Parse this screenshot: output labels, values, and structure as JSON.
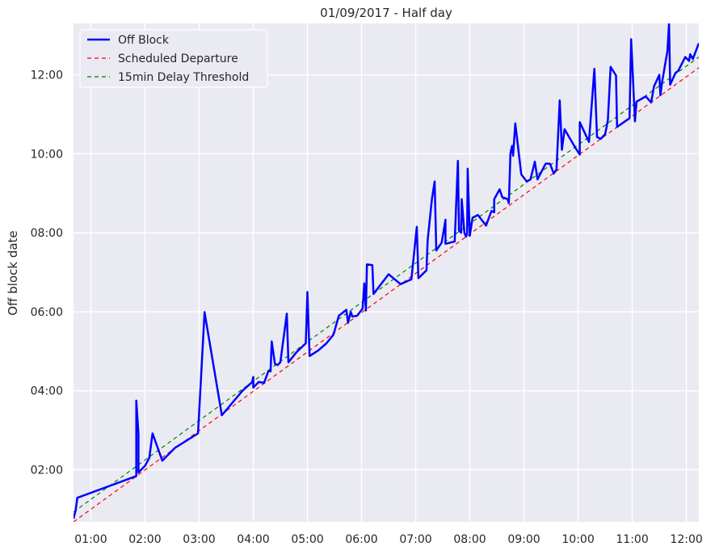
{
  "chart_data": {
    "type": "line",
    "title": "01/09/2017 - Half day",
    "xlabel": "",
    "ylabel": "Off block date",
    "x_unit": "hours (time of day)",
    "y_unit": "hours (time of day)",
    "xlim": [
      0.68,
      12.23
    ],
    "ylim": [
      0.68,
      13.3
    ],
    "grid": true,
    "legend_position": "top-left",
    "x_ticks": [
      {
        "v": 1,
        "label": "01:00"
      },
      {
        "v": 2,
        "label": "02:00"
      },
      {
        "v": 3,
        "label": "03:00"
      },
      {
        "v": 4,
        "label": "04:00"
      },
      {
        "v": 5,
        "label": "05:00"
      },
      {
        "v": 6,
        "label": "06:00"
      },
      {
        "v": 7,
        "label": "07:00"
      },
      {
        "v": 8,
        "label": "08:00"
      },
      {
        "v": 9,
        "label": "09:00"
      },
      {
        "v": 10,
        "label": "10:00"
      },
      {
        "v": 11,
        "label": "11:00"
      },
      {
        "v": 12,
        "label": "12:00"
      }
    ],
    "y_ticks": [
      {
        "v": 2,
        "label": "02:00"
      },
      {
        "v": 4,
        "label": "04:00"
      },
      {
        "v": 6,
        "label": "06:00"
      },
      {
        "v": 8,
        "label": "08:00"
      },
      {
        "v": 10,
        "label": "10:00"
      },
      {
        "v": 12,
        "label": "12:00"
      }
    ],
    "series": [
      {
        "name": "Off Block",
        "color": "#0000ff",
        "style": "solid",
        "points": [
          [
            0.68,
            0.76
          ],
          [
            0.72,
            0.98
          ],
          [
            0.75,
            1.29
          ],
          [
            1.84,
            1.84
          ],
          [
            1.84,
            3.75
          ],
          [
            1.88,
            2.9
          ],
          [
            1.88,
            1.93
          ],
          [
            2.0,
            2.1
          ],
          [
            2.08,
            2.3
          ],
          [
            2.14,
            2.92
          ],
          [
            2.32,
            2.23
          ],
          [
            2.55,
            2.55
          ],
          [
            2.98,
            2.92
          ],
          [
            3.1,
            5.99
          ],
          [
            3.42,
            3.38
          ],
          [
            3.8,
            4.0
          ],
          [
            3.98,
            4.22
          ],
          [
            4.0,
            4.35
          ],
          [
            4.0,
            4.08
          ],
          [
            4.1,
            4.22
          ],
          [
            4.2,
            4.2
          ],
          [
            4.28,
            4.5
          ],
          [
            4.32,
            4.49
          ],
          [
            4.34,
            5.25
          ],
          [
            4.4,
            4.68
          ],
          [
            4.45,
            4.65
          ],
          [
            4.5,
            4.72
          ],
          [
            4.62,
            5.95
          ],
          [
            4.65,
            4.72
          ],
          [
            4.8,
            4.98
          ],
          [
            4.97,
            5.2
          ],
          [
            5.0,
            6.5
          ],
          [
            5.04,
            4.88
          ],
          [
            5.2,
            5.02
          ],
          [
            5.35,
            5.2
          ],
          [
            5.48,
            5.42
          ],
          [
            5.58,
            5.9
          ],
          [
            5.72,
            6.05
          ],
          [
            5.75,
            5.72
          ],
          [
            5.8,
            6.0
          ],
          [
            5.83,
            5.88
          ],
          [
            5.92,
            5.9
          ],
          [
            6.02,
            6.08
          ],
          [
            6.05,
            6.72
          ],
          [
            6.08,
            6.03
          ],
          [
            6.1,
            7.2
          ],
          [
            6.2,
            7.18
          ],
          [
            6.22,
            6.45
          ],
          [
            6.5,
            6.95
          ],
          [
            6.72,
            6.7
          ],
          [
            6.92,
            6.82
          ],
          [
            7.02,
            8.15
          ],
          [
            7.05,
            6.85
          ],
          [
            7.2,
            7.05
          ],
          [
            7.22,
            7.8
          ],
          [
            7.3,
            8.85
          ],
          [
            7.35,
            9.3
          ],
          [
            7.38,
            7.55
          ],
          [
            7.48,
            7.75
          ],
          [
            7.55,
            8.33
          ],
          [
            7.55,
            7.72
          ],
          [
            7.72,
            7.78
          ],
          [
            7.78,
            9.82
          ],
          [
            7.8,
            8.07
          ],
          [
            7.84,
            8.0
          ],
          [
            7.85,
            8.85
          ],
          [
            7.9,
            8.0
          ],
          [
            7.93,
            7.9
          ],
          [
            7.95,
            8.0
          ],
          [
            7.96,
            9.62
          ],
          [
            8.0,
            7.92
          ],
          [
            8.05,
            8.38
          ],
          [
            8.15,
            8.45
          ],
          [
            8.3,
            8.18
          ],
          [
            8.4,
            8.55
          ],
          [
            8.45,
            8.52
          ],
          [
            8.45,
            8.85
          ],
          [
            8.55,
            9.1
          ],
          [
            8.6,
            8.9
          ],
          [
            8.7,
            8.85
          ],
          [
            8.72,
            8.75
          ],
          [
            8.75,
            10.0
          ],
          [
            8.78,
            10.2
          ],
          [
            8.8,
            9.95
          ],
          [
            8.84,
            10.77
          ],
          [
            8.95,
            9.48
          ],
          [
            9.05,
            9.3
          ],
          [
            9.12,
            9.35
          ],
          [
            9.2,
            9.8
          ],
          [
            9.25,
            9.35
          ],
          [
            9.4,
            9.75
          ],
          [
            9.48,
            9.75
          ],
          [
            9.55,
            9.5
          ],
          [
            9.6,
            9.6
          ],
          [
            9.66,
            11.35
          ],
          [
            9.7,
            10.1
          ],
          [
            9.75,
            10.62
          ],
          [
            9.95,
            10.15
          ],
          [
            10.03,
            9.98
          ],
          [
            10.03,
            10.8
          ],
          [
            10.2,
            10.3
          ],
          [
            10.3,
            12.15
          ],
          [
            10.35,
            10.42
          ],
          [
            10.42,
            10.38
          ],
          [
            10.5,
            10.5
          ],
          [
            10.55,
            10.85
          ],
          [
            10.6,
            12.2
          ],
          [
            10.7,
            11.98
          ],
          [
            10.72,
            10.68
          ],
          [
            10.95,
            10.9
          ],
          [
            10.98,
            12.9
          ],
          [
            11.05,
            10.82
          ],
          [
            11.08,
            11.32
          ],
          [
            11.25,
            11.45
          ],
          [
            11.35,
            11.3
          ],
          [
            11.4,
            11.7
          ],
          [
            11.5,
            12.0
          ],
          [
            11.52,
            11.48
          ],
          [
            11.55,
            11.8
          ],
          [
            11.65,
            12.6
          ],
          [
            11.68,
            13.3
          ],
          [
            11.7,
            11.75
          ],
          [
            11.8,
            12.05
          ],
          [
            11.85,
            12.1
          ],
          [
            11.98,
            12.45
          ],
          [
            12.05,
            12.35
          ],
          [
            12.07,
            12.52
          ],
          [
            12.12,
            12.4
          ],
          [
            12.23,
            12.8
          ]
        ]
      },
      {
        "name": "Scheduled Departure",
        "color": "#ff0000",
        "style": "dashed",
        "points": [
          [
            0.68,
            0.68
          ],
          [
            12.23,
            12.18
          ]
        ]
      },
      {
        "name": "15min Delay Threshold",
        "color": "#008000",
        "style": "dashed",
        "points": [
          [
            0.68,
            0.93
          ],
          [
            12.23,
            12.45
          ]
        ]
      }
    ]
  }
}
